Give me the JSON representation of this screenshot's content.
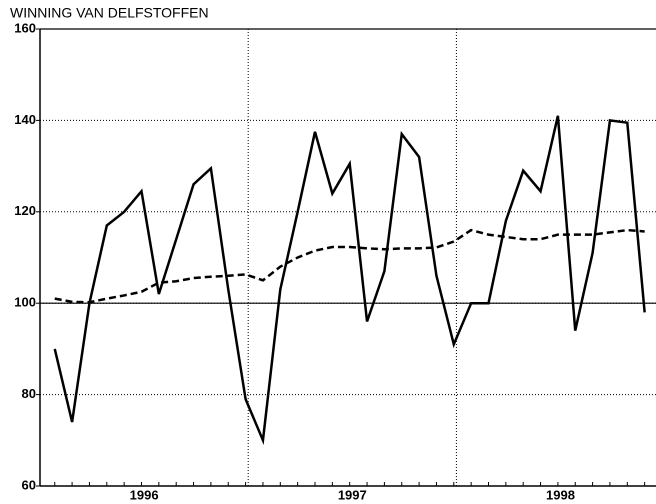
{
  "chart_data": {
    "type": "line",
    "title": "WINNING VAN DELFSTOFFEN",
    "categories": [
      null,
      null,
      null,
      null,
      null,
      null,
      null,
      null,
      null,
      null,
      null,
      null,
      null,
      null,
      null,
      null,
      null,
      null,
      null,
      null,
      null,
      null,
      null,
      null,
      null,
      null,
      null,
      null,
      null,
      null,
      null,
      null,
      null,
      null,
      null
    ],
    "year_labels": [
      "1996",
      "1997",
      "1998"
    ],
    "series": [
      {
        "color": "#000000",
        "dash": false,
        "values": [
          90,
          74,
          100,
          117,
          120,
          124.5,
          102,
          114,
          126,
          129.5,
          103,
          79,
          70,
          103,
          120,
          137.5,
          124,
          130.5,
          96,
          107,
          137,
          132,
          106,
          91,
          100,
          100,
          118,
          129,
          124.5,
          141,
          94,
          111,
          140,
          139.5,
          98
        ]
      },
      {
        "color": "#000000",
        "dash": true,
        "values": [
          101,
          100.3,
          100.2,
          101,
          101.7,
          102.5,
          104.5,
          104.8,
          105.5,
          105.8,
          106,
          106.3,
          105,
          108,
          110,
          111.5,
          112.3,
          112.3,
          112,
          111.8,
          112,
          112,
          112.2,
          113.5,
          116,
          115,
          114.5,
          114,
          114,
          115,
          115,
          115,
          115.5,
          116,
          115.7
        ]
      }
    ],
    "ylim": [
      60,
      160
    ],
    "yticks": [
      60,
      80,
      100,
      120,
      140,
      160
    ],
    "reference_line": 100,
    "grid": true
  }
}
